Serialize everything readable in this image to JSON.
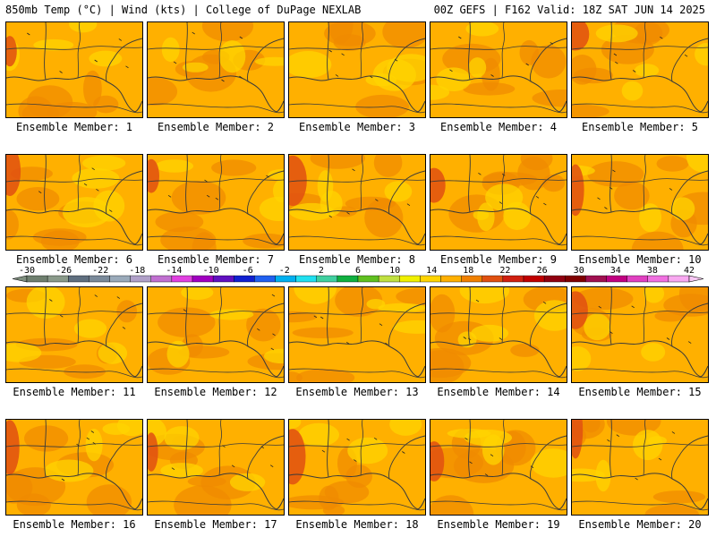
{
  "header": {
    "left": "850mb Temp (°C) | Wind (kts) | College of DuPage NEXLAB",
    "right": "00Z GEFS | F162 Valid: 18Z SAT JUN 14 2025"
  },
  "panel_label_prefix": "Ensemble Member: ",
  "members": [
    "1",
    "2",
    "3",
    "4",
    "5",
    "6",
    "7",
    "8",
    "9",
    "10",
    "11",
    "12",
    "13",
    "14",
    "15",
    "16",
    "17",
    "18",
    "19",
    "20"
  ],
  "colorbar": {
    "tick_labels": [
      "-30",
      "-26",
      "-22",
      "-18",
      "-14",
      "-10",
      "-6",
      "-2",
      "2",
      "6",
      "10",
      "14",
      "18",
      "22",
      "26",
      "30",
      "34",
      "38",
      "42"
    ],
    "colors": [
      "#6f7f6f",
      "#8a9a8a",
      "#5f6f7f",
      "#7a8a9a",
      "#9aaaba",
      "#b0a0c8",
      "#c070d0",
      "#e040e0",
      "#a000c0",
      "#6010c0",
      "#1020d0",
      "#2060f0",
      "#00b0f0",
      "#20e0f0",
      "#40d0a0",
      "#10b040",
      "#60c020",
      "#c0e040",
      "#f0f000",
      "#ffd400",
      "#ffb000",
      "#f08000",
      "#e05010",
      "#d02010",
      "#c00000",
      "#900010",
      "#800000",
      "#a01050",
      "#c00080",
      "#e040c0",
      "#f070e0",
      "#f8a8f0"
    ],
    "vmin": -30,
    "vmax": 42
  }
}
